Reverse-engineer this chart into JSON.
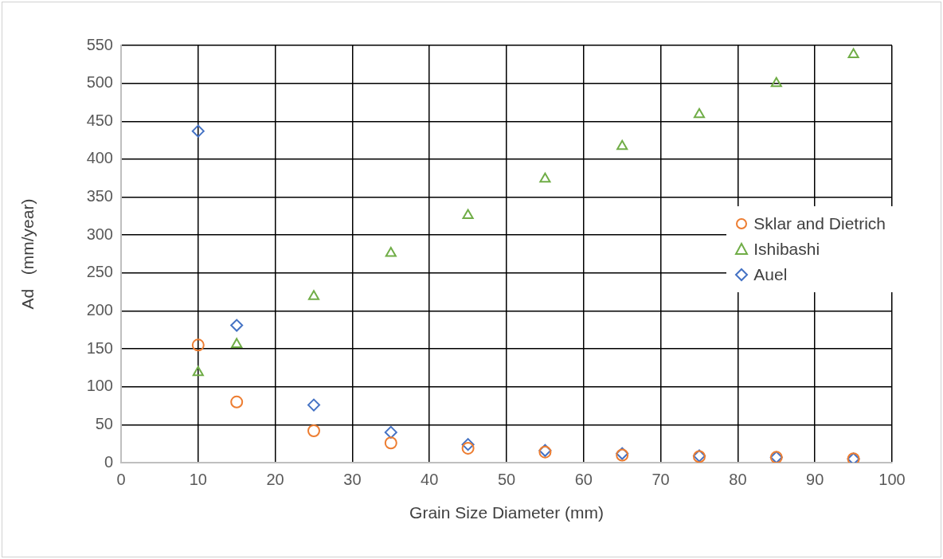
{
  "chart_data": {
    "type": "scatter",
    "xlabel": "Grain Size Diameter (mm)",
    "ylabel": "Ad   (mm/year)",
    "x": [
      10,
      15,
      25,
      35,
      45,
      55,
      65,
      75,
      85,
      95
    ],
    "series": [
      {
        "name": "Sklar and Dietrich",
        "color": "#ed7d31",
        "marker": "circle",
        "values": [
          155,
          80,
          42,
          26,
          19,
          14,
          10,
          8,
          7,
          5
        ]
      },
      {
        "name": "Ishibashi",
        "color": "#70ad47",
        "marker": "triangle",
        "values": [
          119,
          156,
          219,
          276,
          326,
          374,
          417,
          459,
          500,
          538
        ]
      },
      {
        "name": "Auel",
        "color": "#4472c4",
        "marker": "diamond",
        "values": [
          437,
          181,
          76,
          40,
          24,
          16,
          12,
          9,
          7,
          5
        ]
      }
    ],
    "xlim": [
      0,
      100
    ],
    "xticks": [
      0,
      10,
      20,
      30,
      40,
      50,
      60,
      70,
      80,
      90,
      100
    ],
    "ylim": [
      0,
      550
    ],
    "yticks": [
      0,
      50,
      100,
      150,
      200,
      250,
      300,
      350,
      400,
      450,
      500,
      550
    ],
    "grid": true,
    "legend": "right"
  }
}
